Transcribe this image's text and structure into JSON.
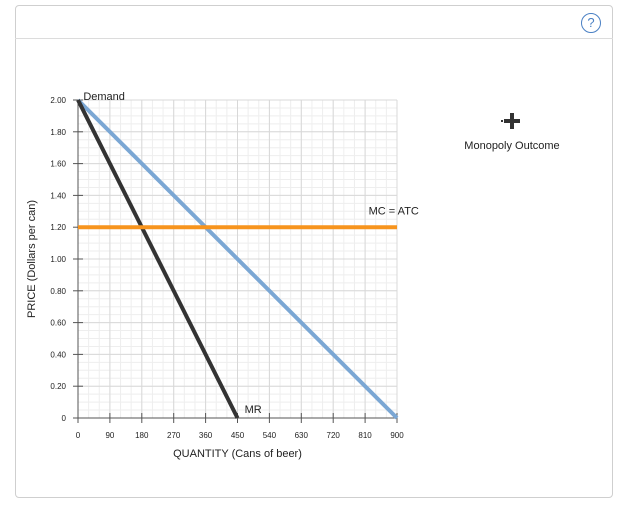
{
  "panel": {
    "help_label": "?",
    "help_icon": "help-circle-icon"
  },
  "palette": {
    "tool_label": "Monopoly Outcome",
    "tool_icon": "crosshair-plus-icon"
  },
  "chart_data": {
    "type": "line",
    "xlabel": "QUANTITY (Cans of beer)",
    "ylabel": "PRICE (Dollars per can)",
    "xlim": [
      0,
      900
    ],
    "ylim": [
      0,
      2.0
    ],
    "x_ticks": [
      0,
      90,
      180,
      270,
      360,
      450,
      540,
      630,
      720,
      810,
      900
    ],
    "x_tick_labels": [
      "0",
      "90",
      "180",
      "270",
      "360",
      "450",
      "540",
      "630",
      "720",
      "810",
      "900"
    ],
    "y_ticks": [
      0,
      0.2,
      0.4,
      0.6,
      0.8,
      1.0,
      1.2,
      1.4,
      1.6,
      1.8,
      2.0
    ],
    "y_tick_labels": [
      "0",
      "0.20",
      "0.40",
      "0.60",
      "0.80",
      "1.00",
      "1.20",
      "1.40",
      "1.60",
      "1.80",
      "2.00"
    ],
    "minor_x_step": 30,
    "minor_y_step": 0.05,
    "grid": true,
    "series": [
      {
        "name": "Demand",
        "color": "#7ba7d4",
        "points": [
          [
            0,
            2.0
          ],
          [
            900,
            0
          ]
        ],
        "label_at": [
          15,
          2.0
        ]
      },
      {
        "name": "MR",
        "color": "#333333",
        "points": [
          [
            0,
            2.0
          ],
          [
            450,
            0
          ]
        ],
        "label_at": [
          470,
          0.03
        ]
      },
      {
        "name": "MC = ATC",
        "color": "#f7941d",
        "points": [
          [
            0,
            1.2
          ],
          [
            900,
            1.2
          ]
        ],
        "label_at": [
          820,
          1.28
        ]
      }
    ]
  }
}
